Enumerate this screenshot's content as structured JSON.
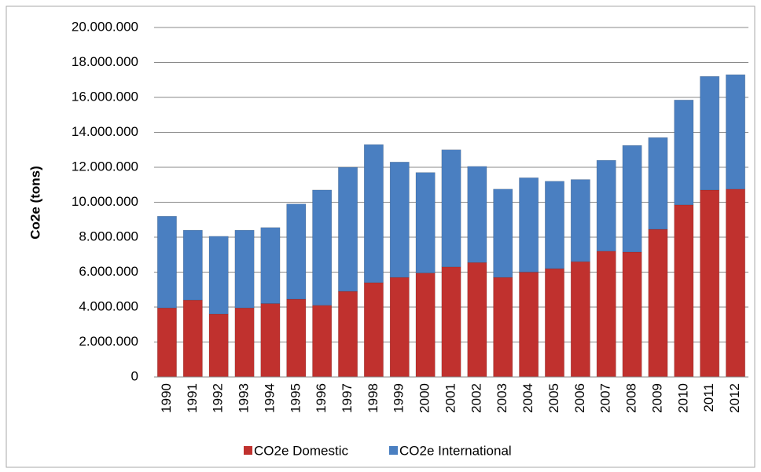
{
  "chart_data": {
    "type": "stacked-bar",
    "y_label": "Co2e (tons)",
    "categories": [
      "1990",
      "1991",
      "1992",
      "1993",
      "1994",
      "1995",
      "1996",
      "1997",
      "1998",
      "1999",
      "2000",
      "2001",
      "2002",
      "2003",
      "2004",
      "2005",
      "2006",
      "2007",
      "2008",
      "2009",
      "2010",
      "2011",
      "2012"
    ],
    "series": [
      {
        "name": "CO2e Domestic",
        "color": "#c0312e",
        "values": [
          3950000,
          4400000,
          3600000,
          3950000,
          4200000,
          4450000,
          4100000,
          4900000,
          5400000,
          5700000,
          5950000,
          6300000,
          6550000,
          5700000,
          6000000,
          6200000,
          6600000,
          7200000,
          7150000,
          8450000,
          9850000,
          10700000,
          10750000
        ]
      },
      {
        "name": "CO2e International",
        "color": "#4a7fc1",
        "values": [
          5250000,
          4000000,
          4450000,
          4450000,
          4350000,
          5450000,
          6600000,
          7100000,
          7900000,
          6600000,
          5750000,
          6700000,
          5500000,
          5050000,
          5400000,
          5000000,
          4700000,
          5200000,
          6100000,
          5250000,
          6000000,
          6500000,
          6550000
        ]
      }
    ],
    "ylim": [
      0,
      20000000
    ],
    "yticks": [
      0,
      {
        "value": 2000000,
        "label": "2.000.000"
      },
      {
        "value": 4000000,
        "label": "4.000.000"
      },
      {
        "value": 6000000,
        "label": "6.000.000"
      },
      {
        "value": 8000000,
        "label": "8.000.000"
      },
      {
        "value": 10000000,
        "label": "10.000.000"
      },
      {
        "value": 12000000,
        "label": "12.000.000"
      },
      {
        "value": 14000000,
        "label": "14.000.000"
      },
      {
        "value": 16000000,
        "label": "16.000.000"
      },
      {
        "value": 18000000,
        "label": "18.000.000"
      },
      {
        "value": 20000000,
        "label": "20.000.000"
      }
    ],
    "grid": true,
    "legend": "bottom"
  }
}
